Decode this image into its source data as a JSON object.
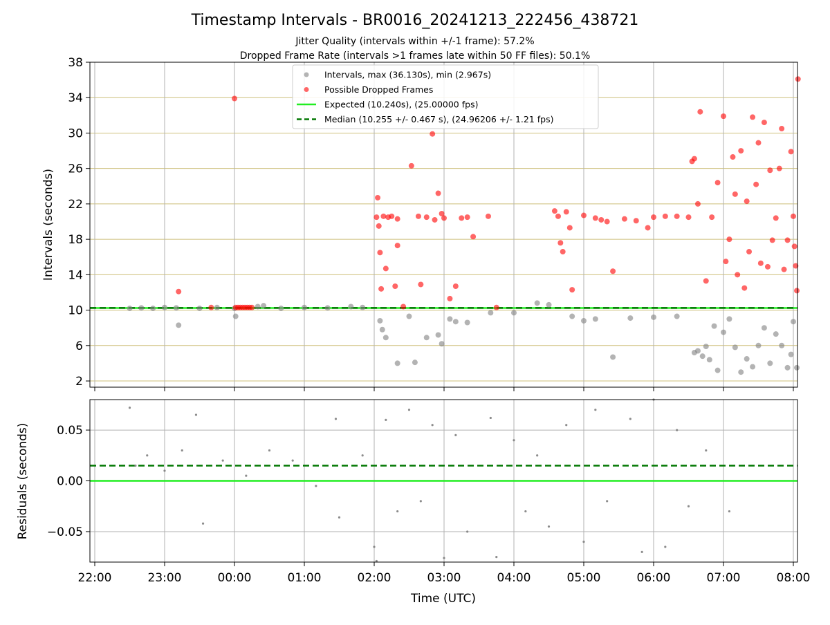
{
  "title": "Timestamp Intervals - BR0016_20241213_222456_438721",
  "subtitle_1": "Jitter Quality (intervals within +/-1 frame): 57.2%",
  "subtitle_2": "Dropped Frame Rate (intervals >1 frames late within 50 FF files): 50.1%",
  "colors": {
    "intervals": "#808080",
    "dropped": "#ff0000",
    "expected": "#22ee22",
    "median": "#007700",
    "grid": "#b0b0b0",
    "hgrid_top": "#cdbf7a"
  },
  "chart_data": [
    {
      "type": "scatter",
      "ylabel": "Intervals (seconds)",
      "xlabel": "",
      "xlim": [
        "21:55",
        "08:04"
      ],
      "ylim": [
        1.3,
        38
      ],
      "yticks": [
        "2",
        "6",
        "10",
        "14",
        "18",
        "22",
        "26",
        "30",
        "34",
        "38"
      ],
      "xticks": [
        "22:00",
        "23:00",
        "00:00",
        "01:00",
        "02:00",
        "03:00",
        "04:00",
        "05:00",
        "06:00",
        "07:00",
        "08:00"
      ],
      "grid": true,
      "legend_position": "upper center",
      "legend": [
        {
          "label": "Intervals, max (36.130s), min (2.967s)",
          "kind": "marker",
          "color": "#808080"
        },
        {
          "label": "Possible Dropped Frames",
          "kind": "marker",
          "color": "#ff0000"
        },
        {
          "label": "Expected (10.240s), (25.00000 fps)",
          "kind": "line",
          "color": "#22ee22"
        },
        {
          "label": "Median (10.255 +/- 0.467 s), (24.96206 +/- 1.21 fps)",
          "kind": "dashed",
          "color": "#007700"
        }
      ],
      "reference_lines": {
        "expected": 10.24,
        "median": 10.255
      },
      "series": [
        {
          "name": "Intervals, max (36.130s), min (2.967s)",
          "color": "#808080",
          "points": [
            [
              "22:30",
              10.2
            ],
            [
              "22:40",
              10.25
            ],
            [
              "22:50",
              10.2
            ],
            [
              "23:00",
              10.3
            ],
            [
              "23:10",
              10.25
            ],
            [
              "23:12",
              8.3
            ],
            [
              "23:30",
              10.2
            ],
            [
              "23:45",
              10.3
            ],
            [
              "00:00",
              10.2
            ],
            [
              "00:01",
              9.3
            ],
            [
              "00:20",
              10.4
            ],
            [
              "00:25",
              10.5
            ],
            [
              "00:40",
              10.2
            ],
            [
              "01:00",
              10.3
            ],
            [
              "01:20",
              10.25
            ],
            [
              "01:40",
              10.4
            ],
            [
              "01:50",
              10.3
            ],
            [
              "02:05",
              8.8
            ],
            [
              "02:07",
              7.8
            ],
            [
              "02:10",
              6.9
            ],
            [
              "02:20",
              4.0
            ],
            [
              "02:30",
              9.3
            ],
            [
              "02:35",
              4.1
            ],
            [
              "02:45",
              6.9
            ],
            [
              "02:55",
              7.2
            ],
            [
              "02:58",
              6.2
            ],
            [
              "03:05",
              9.0
            ],
            [
              "03:10",
              8.7
            ],
            [
              "03:20",
              8.6
            ],
            [
              "03:40",
              9.7
            ],
            [
              "04:00",
              9.7
            ],
            [
              "04:20",
              10.8
            ],
            [
              "04:30",
              10.6
            ],
            [
              "04:50",
              9.3
            ],
            [
              "05:00",
              8.8
            ],
            [
              "05:10",
              9.0
            ],
            [
              "05:25",
              4.7
            ],
            [
              "05:40",
              9.1
            ],
            [
              "06:00",
              9.2
            ],
            [
              "06:20",
              9.3
            ],
            [
              "06:35",
              5.2
            ],
            [
              "06:38",
              5.4
            ],
            [
              "06:42",
              4.8
            ],
            [
              "06:45",
              5.9
            ],
            [
              "06:48",
              4.4
            ],
            [
              "06:52",
              8.2
            ],
            [
              "06:55",
              3.2
            ],
            [
              "07:00",
              7.5
            ],
            [
              "07:05",
              9.0
            ],
            [
              "07:10",
              5.8
            ],
            [
              "07:15",
              3.0
            ],
            [
              "07:20",
              4.5
            ],
            [
              "07:25",
              3.6
            ],
            [
              "07:30",
              6.0
            ],
            [
              "07:35",
              8.0
            ],
            [
              "07:40",
              4.0
            ],
            [
              "07:45",
              7.3
            ],
            [
              "07:50",
              6.0
            ],
            [
              "07:55",
              3.5
            ],
            [
              "07:58",
              5.0
            ],
            [
              "08:00",
              8.7
            ],
            [
              "08:03",
              3.5
            ]
          ]
        },
        {
          "name": "Possible Dropped Frames",
          "color": "#ff0000",
          "points": [
            [
              "23:12",
              12.1
            ],
            [
              "23:40",
              10.3
            ],
            [
              "00:00",
              33.9
            ],
            [
              "00:01",
              10.3
            ],
            [
              "00:03",
              10.3
            ],
            [
              "00:05",
              10.3
            ],
            [
              "00:07",
              10.3
            ],
            [
              "00:09",
              10.3
            ],
            [
              "00:11",
              10.3
            ],
            [
              "00:13",
              10.3
            ],
            [
              "00:15",
              10.3
            ],
            [
              "02:02",
              20.5
            ],
            [
              "02:03",
              22.7
            ],
            [
              "02:04",
              19.5
            ],
            [
              "02:05",
              16.5
            ],
            [
              "02:06",
              12.4
            ],
            [
              "02:08",
              20.6
            ],
            [
              "02:10",
              14.7
            ],
            [
              "02:12",
              20.5
            ],
            [
              "02:15",
              20.6
            ],
            [
              "02:18",
              12.7
            ],
            [
              "02:20",
              20.3
            ],
            [
              "02:20",
              17.3
            ],
            [
              "02:25",
              10.4
            ],
            [
              "02:32",
              26.3
            ],
            [
              "02:38",
              20.6
            ],
            [
              "02:40",
              12.9
            ],
            [
              "02:45",
              20.5
            ],
            [
              "02:50",
              29.9
            ],
            [
              "02:52",
              20.2
            ],
            [
              "02:55",
              23.2
            ],
            [
              "02:58",
              20.9
            ],
            [
              "03:00",
              20.4
            ],
            [
              "03:05",
              11.3
            ],
            [
              "03:10",
              12.7
            ],
            [
              "03:15",
              20.4
            ],
            [
              "03:20",
              20.5
            ],
            [
              "03:25",
              18.3
            ],
            [
              "03:38",
              20.6
            ],
            [
              "03:45",
              10.3
            ],
            [
              "04:35",
              21.2
            ],
            [
              "04:38",
              20.6
            ],
            [
              "04:40",
              17.6
            ],
            [
              "04:42",
              16.6
            ],
            [
              "04:45",
              21.1
            ],
            [
              "04:48",
              19.3
            ],
            [
              "04:50",
              12.3
            ],
            [
              "05:00",
              20.7
            ],
            [
              "05:10",
              20.4
            ],
            [
              "05:15",
              20.2
            ],
            [
              "05:20",
              20.0
            ],
            [
              "05:25",
              14.4
            ],
            [
              "05:35",
              20.3
            ],
            [
              "05:45",
              20.1
            ],
            [
              "05:55",
              19.3
            ],
            [
              "06:00",
              20.5
            ],
            [
              "06:10",
              20.6
            ],
            [
              "06:20",
              20.6
            ],
            [
              "06:30",
              20.5
            ],
            [
              "06:33",
              26.8
            ],
            [
              "06:35",
              27.1
            ],
            [
              "06:38",
              22.0
            ],
            [
              "06:40",
              32.4
            ],
            [
              "06:45",
              13.3
            ],
            [
              "06:50",
              20.5
            ],
            [
              "06:55",
              24.4
            ],
            [
              "07:00",
              31.9
            ],
            [
              "07:02",
              15.5
            ],
            [
              "07:05",
              18.0
            ],
            [
              "07:08",
              27.3
            ],
            [
              "07:10",
              23.1
            ],
            [
              "07:12",
              14.0
            ],
            [
              "07:15",
              28.0
            ],
            [
              "07:18",
              12.5
            ],
            [
              "07:20",
              22.3
            ],
            [
              "07:22",
              16.6
            ],
            [
              "07:25",
              31.8
            ],
            [
              "07:28",
              24.2
            ],
            [
              "07:30",
              28.9
            ],
            [
              "07:32",
              15.3
            ],
            [
              "07:35",
              31.2
            ],
            [
              "07:38",
              14.9
            ],
            [
              "07:40",
              25.8
            ],
            [
              "07:42",
              17.9
            ],
            [
              "07:45",
              20.4
            ],
            [
              "07:48",
              26.0
            ],
            [
              "07:50",
              30.5
            ],
            [
              "07:52",
              14.6
            ],
            [
              "07:55",
              17.9
            ],
            [
              "07:58",
              27.9
            ],
            [
              "08:00",
              20.6
            ],
            [
              "08:01",
              17.2
            ],
            [
              "08:02",
              15.0
            ],
            [
              "08:03",
              12.2
            ],
            [
              "08:04",
              36.1
            ]
          ]
        }
      ]
    },
    {
      "type": "scatter",
      "ylabel": "Residuals (seconds)",
      "xlabel": "Time (UTC)",
      "xlim": [
        "21:55",
        "08:04"
      ],
      "ylim": [
        -0.08,
        0.08
      ],
      "yticks": [
        "0.05",
        "0.00",
        "−0.05"
      ],
      "xticks": [
        "22:00",
        "23:00",
        "00:00",
        "01:00",
        "02:00",
        "03:00",
        "04:00",
        "05:00",
        "06:00",
        "07:00",
        "08:00"
      ],
      "grid": true,
      "reference_lines": {
        "expected": 0.0,
        "median": 0.015
      },
      "series": [
        {
          "name": "",
          "color": "#808080",
          "points": [
            [
              "22:30",
              0.072
            ],
            [
              "22:35",
              0.015
            ],
            [
              "22:45",
              0.025
            ],
            [
              "23:00",
              0.01
            ],
            [
              "23:15",
              0.03
            ],
            [
              "23:27",
              0.065
            ],
            [
              "23:33",
              -0.042
            ],
            [
              "23:50",
              0.02
            ],
            [
              "00:10",
              0.005
            ],
            [
              "00:30",
              0.03
            ],
            [
              "00:50",
              0.02
            ],
            [
              "01:10",
              -0.005
            ],
            [
              "01:27",
              0.061
            ],
            [
              "01:30",
              -0.036
            ],
            [
              "01:50",
              0.025
            ],
            [
              "02:00",
              -0.065
            ],
            [
              "02:02",
              -0.079
            ],
            [
              "02:10",
              0.06
            ],
            [
              "02:20",
              -0.03
            ],
            [
              "02:30",
              0.07
            ],
            [
              "02:40",
              -0.02
            ],
            [
              "02:50",
              0.055
            ],
            [
              "03:00",
              -0.076
            ],
            [
              "03:10",
              0.045
            ],
            [
              "03:20",
              -0.05
            ],
            [
              "03:40",
              0.062
            ],
            [
              "03:45",
              -0.075
            ],
            [
              "04:00",
              0.04
            ],
            [
              "04:10",
              -0.03
            ],
            [
              "04:20",
              0.025
            ],
            [
              "04:30",
              -0.045
            ],
            [
              "04:45",
              0.055
            ],
            [
              "05:00",
              -0.06
            ],
            [
              "05:10",
              0.07
            ],
            [
              "05:20",
              -0.02
            ],
            [
              "05:40",
              0.061
            ],
            [
              "05:50",
              -0.07
            ],
            [
              "06:00",
              0.08
            ],
            [
              "06:10",
              -0.065
            ],
            [
              "06:20",
              0.05
            ],
            [
              "06:30",
              -0.025
            ],
            [
              "06:45",
              0.03
            ],
            [
              "07:05",
              -0.03
            ]
          ]
        }
      ]
    }
  ]
}
